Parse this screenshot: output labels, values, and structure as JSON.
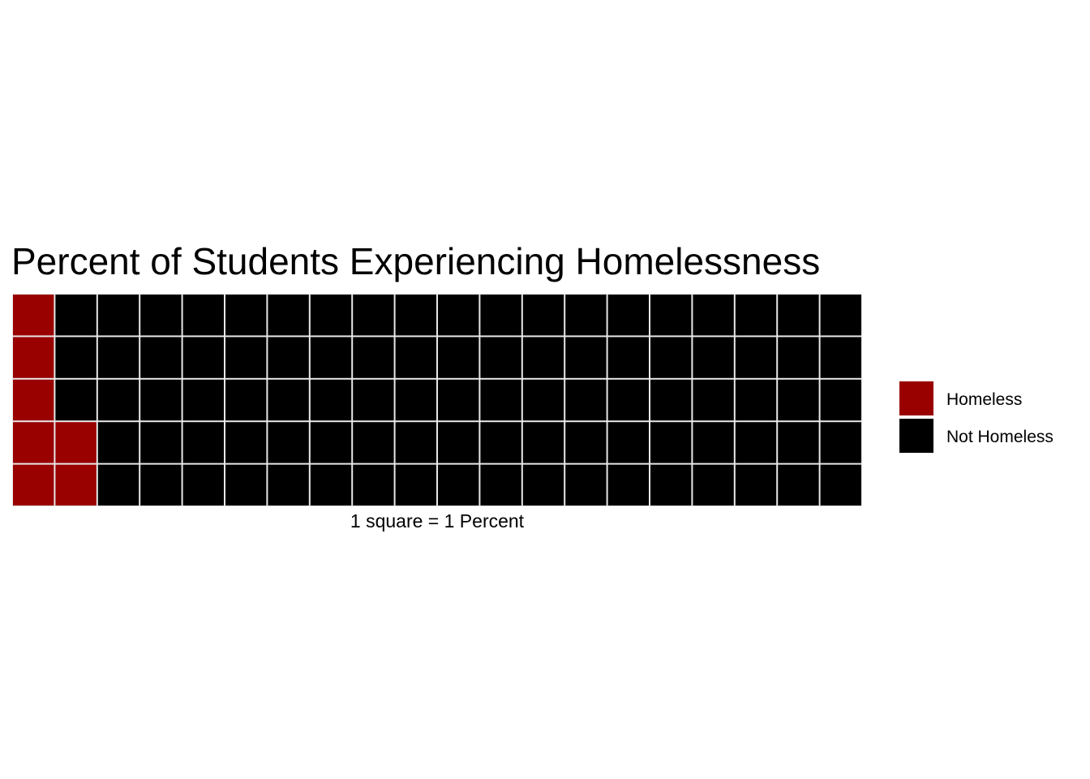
{
  "chart_data": {
    "type": "waffle",
    "title": "Percent of Students Experiencing Homelessness",
    "caption": "1 square = 1 Percent",
    "rows": 5,
    "columns": 20,
    "series": [
      {
        "name": "Homeless",
        "value": 7,
        "color": "#990000"
      },
      {
        "name": "Not Homeless",
        "value": 93,
        "color": "#000000"
      }
    ],
    "fill_order": "column-major, bottom-to-top",
    "legend_position": "right",
    "grid": false
  }
}
